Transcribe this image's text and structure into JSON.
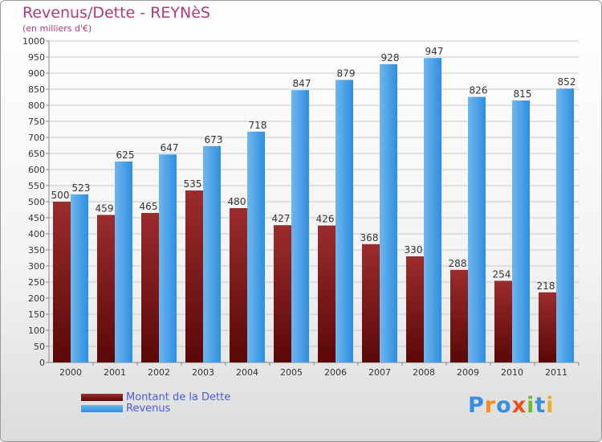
{
  "header": {
    "title": "Revenus/Dette - REYNèS",
    "subtitle": "(en milliers d'€)"
  },
  "legend": {
    "debt_label": "Montant de la Dette",
    "revenue_label": "Revenus"
  },
  "logo": {
    "text": "Proxiti"
  },
  "colors": {
    "debt_top": "#9b2c2c",
    "debt_bottom": "#5a0808",
    "revenue_top": "#6fb6ee",
    "revenue_bottom": "#2f8fe0",
    "title": "#b03a7a",
    "legend_text": "#4a5bd6"
  },
  "chart_data": {
    "type": "bar",
    "title": "Revenus/Dette - REYNèS",
    "subtitle": "(en milliers d'€)",
    "xlabel": "",
    "ylabel": "",
    "ylim": [
      0,
      1000
    ],
    "ytick_step": 50,
    "grid": true,
    "legend_position": "bottom-left",
    "categories": [
      "2000",
      "2001",
      "2002",
      "2003",
      "2004",
      "2005",
      "2006",
      "2007",
      "2008",
      "2009",
      "2010",
      "2011"
    ],
    "series": [
      {
        "name": "Montant de la Dette",
        "values": [
          500,
          459,
          465,
          535,
          480,
          427,
          426,
          368,
          330,
          288,
          254,
          218
        ]
      },
      {
        "name": "Revenus",
        "values": [
          523,
          625,
          647,
          673,
          718,
          847,
          879,
          928,
          947,
          826,
          815,
          852
        ]
      }
    ]
  }
}
